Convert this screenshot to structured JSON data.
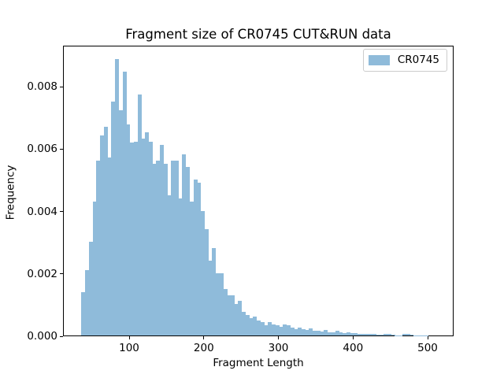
{
  "figure": {
    "background": "#ffffff",
    "spine_color": "#000000"
  },
  "chart_data": {
    "type": "bar",
    "subtype": "histogram",
    "title": "Fragment size of CR0745 CUT&RUN data",
    "xlabel": "Fragment Length",
    "ylabel": "Frequency",
    "legend": {
      "label": "CR0745",
      "position": "upper right",
      "border_color": "#cccccc"
    },
    "bar_color": "#8FBBDA",
    "grid": false,
    "bin_start": 35,
    "bin_width": 5,
    "frequencies": [
      0.0014,
      0.0021,
      0.003,
      0.0043,
      0.0056,
      0.0064,
      0.0067,
      0.0057,
      0.0075,
      0.00887,
      0.00723,
      0.00845,
      0.00677,
      0.00619,
      0.0062,
      0.00773,
      0.0063,
      0.0065,
      0.0062,
      0.0055,
      0.0056,
      0.0061,
      0.0055,
      0.0045,
      0.0056,
      0.0056,
      0.0044,
      0.0058,
      0.0054,
      0.0043,
      0.005,
      0.0049,
      0.004,
      0.0034,
      0.0024,
      0.0028,
      0.002,
      0.002,
      0.0015,
      0.0013,
      0.0013,
      0.001,
      0.0011,
      0.00075,
      0.00065,
      0.00056,
      0.0006,
      0.00048,
      0.00043,
      0.00033,
      0.00042,
      0.00035,
      0.00033,
      0.00029,
      0.00036,
      0.00032,
      0.00025,
      0.00021,
      0.00025,
      0.0002,
      0.00017,
      0.00023,
      0.00016,
      0.00016,
      0.00013,
      0.00018,
      0.00011,
      0.00011,
      0.00014,
      9e-05,
      8e-05,
      9e-05,
      7e-05,
      8e-05,
      6e-05,
      6e-05,
      5e-05,
      5e-05,
      4e-05,
      3e-05,
      2e-05,
      4e-05,
      5e-05,
      2e-05,
      1e-05,
      1e-05,
      4e-05,
      4e-05,
      3e-05,
      1e-05,
      1e-05,
      1e-05,
      1e-05
    ],
    "xlim": [
      11.3,
      534.8
    ],
    "ylim": [
      0,
      0.009314
    ],
    "xticks": [
      100,
      200,
      300,
      400,
      500
    ],
    "yticks": [
      {
        "value": 0.0,
        "label": "0.000"
      },
      {
        "value": 0.002,
        "label": "0.002"
      },
      {
        "value": 0.004,
        "label": "0.004"
      },
      {
        "value": 0.006,
        "label": "0.006"
      },
      {
        "value": 0.008,
        "label": "0.008"
      }
    ]
  }
}
